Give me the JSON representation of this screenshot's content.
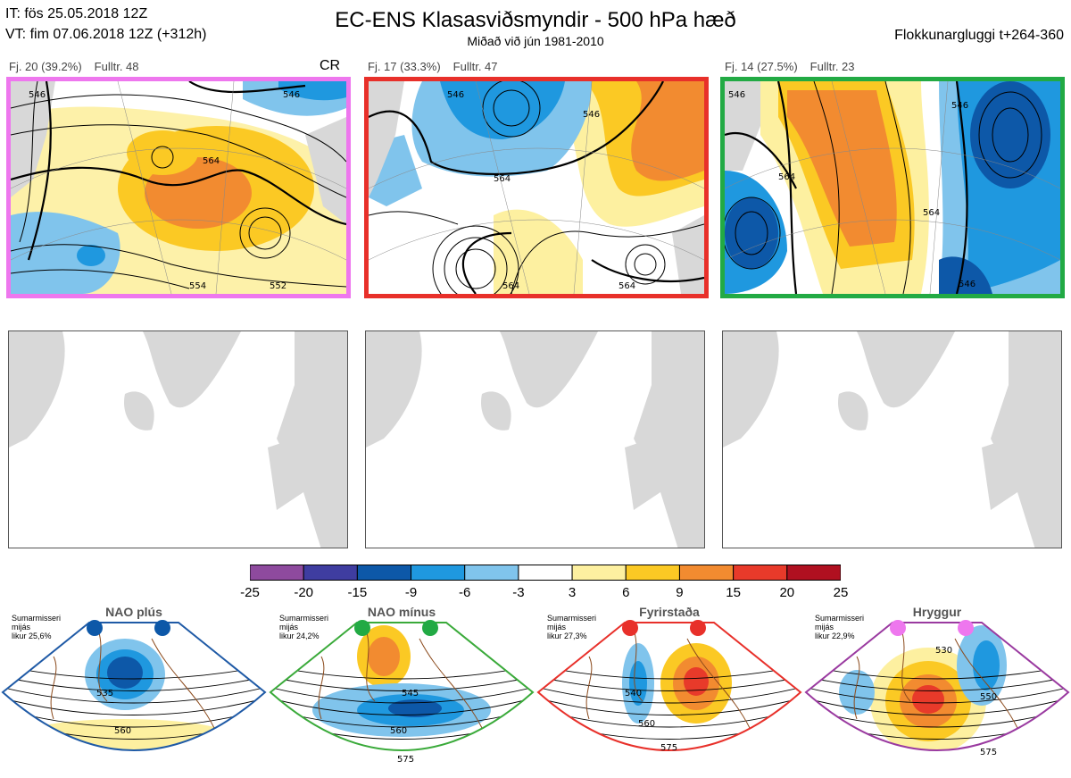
{
  "header": {
    "it_line": "IT: fös 25.05.2018 12Z",
    "vt_line": "VT: fim 07.06.2018 12Z  (+312h)",
    "title": "EC-ENS Klasasviðsmyndir - 500 hPa hæð",
    "subtitle": "Miðað við jún 1981-2010",
    "window": "Flokkunargluggi t+264-360"
  },
  "clusters": [
    {
      "count": "Fj. 20 (39.2%)",
      "representative": "Fulltr. 48",
      "tag": "CR",
      "frame_color": "#ee77ee",
      "contour_labels": [
        "546",
        "564",
        "546",
        "554",
        "552"
      ]
    },
    {
      "count": "Fj. 17 (33.3%)",
      "representative": "Fulltr. 47",
      "tag": "",
      "frame_color": "#e8302a",
      "contour_labels": [
        "546",
        "546",
        "564",
        "564",
        "564"
      ]
    },
    {
      "count": "Fj. 14 (27.5%)",
      "representative": "Fulltr. 23",
      "tag": "",
      "frame_color": "#22aa44",
      "contour_labels": [
        "546",
        "564",
        "564",
        "546",
        "546"
      ]
    }
  ],
  "colorbar": {
    "ticks": [
      "-25",
      "-20",
      "-15",
      "-9",
      "-6",
      "-3",
      "3",
      "6",
      "9",
      "15",
      "20",
      "25"
    ],
    "colors": [
      "#8e4a9e",
      "#3f3da0",
      "#0d58a8",
      "#1f98df",
      "#80c4ec",
      "#ffffff",
      "#fdf0a0",
      "#fbc924",
      "#f28b30",
      "#e83a2a",
      "#b01020"
    ]
  },
  "regimes": [
    {
      "name": "NAO plús",
      "season": [
        "Sumarmisseri",
        "mijás",
        "likur 25,6%"
      ],
      "frame_color": "#1f5aa6",
      "dot_color": "#0d58a8",
      "contour_labels": [
        "535",
        "560"
      ]
    },
    {
      "name": "NAO mínus",
      "season": [
        "Sumarmisseri",
        "mijás",
        "likur 24,2%"
      ],
      "frame_color": "#3aaa3a",
      "dot_color": "#22aa44",
      "contour_labels": [
        "545",
        "560",
        "575"
      ]
    },
    {
      "name": "Fyrirstaða",
      "season": [
        "Sumarmisseri",
        "mijás",
        "likur 27,3%"
      ],
      "frame_color": "#e8302a",
      "dot_color": "#e8302a",
      "contour_labels": [
        "540",
        "560",
        "575"
      ]
    },
    {
      "name": "Hryggur",
      "season": [
        "Sumarmisseri",
        "mijás",
        "likur 22,9%"
      ],
      "frame_color": "#9a3aa0",
      "dot_color": "#ee77ee",
      "contour_labels": [
        "530",
        "550",
        "575"
      ]
    }
  ]
}
